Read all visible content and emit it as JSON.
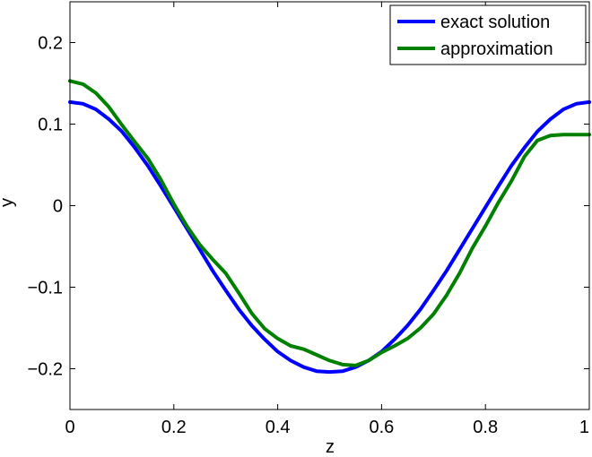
{
  "chart_data": {
    "type": "line",
    "xlabel": "z",
    "ylabel": "y",
    "xlim": [
      0,
      1
    ],
    "ylim": [
      -0.25,
      0.25
    ],
    "xticks": [
      0,
      0.2,
      0.4,
      0.6,
      0.8,
      1
    ],
    "xtick_labels": [
      "0",
      "0.2",
      "0.4",
      "0.6",
      "0.8",
      "1"
    ],
    "yticks": [
      -0.2,
      -0.1,
      0,
      0.1,
      0.2
    ],
    "ytick_labels": [
      "−0.2",
      "−0.1",
      "0",
      "0.1",
      "0.2"
    ],
    "grid": false,
    "legend_position": "top-right",
    "series": [
      {
        "name": "exact solution",
        "color": "#0000ff",
        "x": [
          0,
          0.025,
          0.05,
          0.075,
          0.1,
          0.125,
          0.15,
          0.175,
          0.2,
          0.225,
          0.25,
          0.275,
          0.3,
          0.325,
          0.35,
          0.375,
          0.4,
          0.425,
          0.45,
          0.475,
          0.5,
          0.525,
          0.55,
          0.575,
          0.6,
          0.625,
          0.65,
          0.675,
          0.7,
          0.725,
          0.75,
          0.775,
          0.8,
          0.825,
          0.85,
          0.875,
          0.9,
          0.925,
          0.95,
          0.975,
          1
        ],
        "y": [
          0.127,
          0.125,
          0.118,
          0.106,
          0.091,
          0.071,
          0.049,
          0.024,
          -0.002,
          -0.028,
          -0.054,
          -0.08,
          -0.104,
          -0.127,
          -0.147,
          -0.164,
          -0.179,
          -0.19,
          -0.198,
          -0.203,
          -0.204,
          -0.203,
          -0.198,
          -0.19,
          -0.179,
          -0.164,
          -0.147,
          -0.127,
          -0.104,
          -0.08,
          -0.054,
          -0.028,
          -0.002,
          0.024,
          0.049,
          0.071,
          0.091,
          0.106,
          0.118,
          0.125,
          0.127
        ]
      },
      {
        "name": "approximation",
        "color": "#008000",
        "x": [
          0,
          0.025,
          0.05,
          0.075,
          0.1,
          0.125,
          0.15,
          0.175,
          0.2,
          0.225,
          0.25,
          0.275,
          0.3,
          0.325,
          0.35,
          0.375,
          0.4,
          0.425,
          0.45,
          0.475,
          0.5,
          0.525,
          0.55,
          0.575,
          0.6,
          0.625,
          0.65,
          0.675,
          0.7,
          0.725,
          0.75,
          0.775,
          0.8,
          0.825,
          0.85,
          0.875,
          0.9,
          0.925,
          0.95,
          0.975,
          1
        ],
        "y": [
          0.153,
          0.149,
          0.138,
          0.121,
          0.099,
          0.078,
          0.058,
          0.032,
          0.002,
          -0.025,
          -0.048,
          -0.066,
          -0.083,
          -0.107,
          -0.132,
          -0.151,
          -0.163,
          -0.172,
          -0.176,
          -0.183,
          -0.19,
          -0.195,
          -0.196,
          -0.19,
          -0.18,
          -0.172,
          -0.163,
          -0.15,
          -0.133,
          -0.11,
          -0.083,
          -0.052,
          -0.025,
          0.004,
          0.03,
          0.06,
          0.08,
          0.086,
          0.087,
          0.087,
          0.087
        ]
      }
    ]
  }
}
